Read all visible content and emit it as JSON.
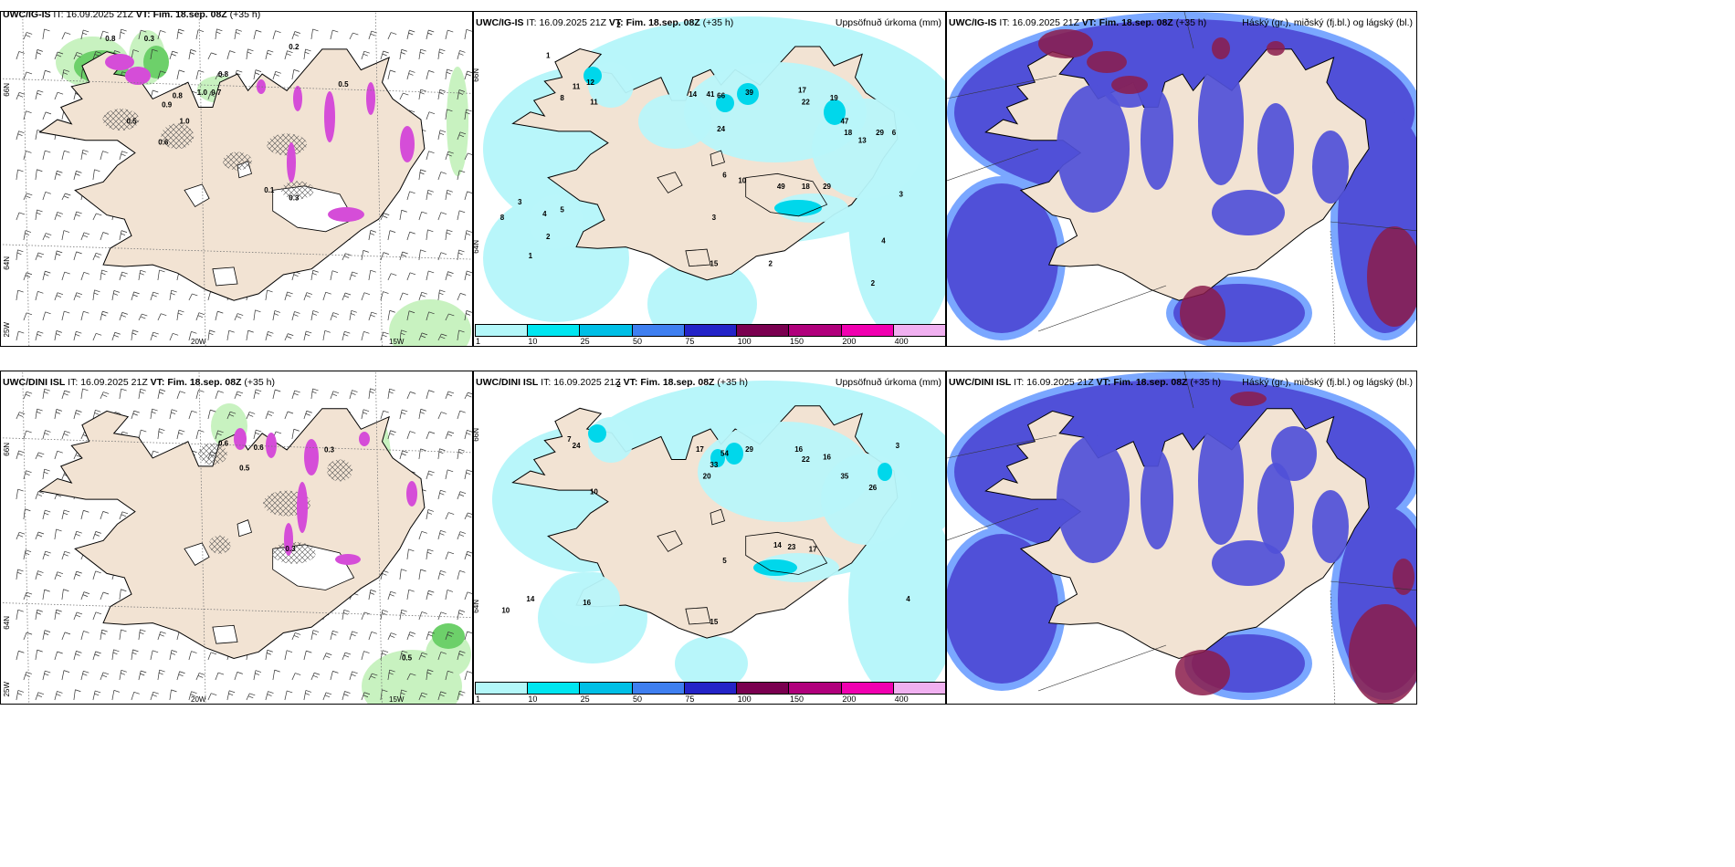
{
  "rows": [
    {
      "model": "UWC/IG-IS",
      "panels": [
        {
          "model": "UWC/IG-IS",
          "it_label": "IT:",
          "it": "16.09.2025 21Z",
          "vt_label": "VT:",
          "vt": "Fim. 18.sep. 08Z",
          "lead": "(+35 h)",
          "right_title": "",
          "header_cropped": true
        },
        {
          "model": "UWC/IG-IS",
          "it_label": "IT:",
          "it": "16.09.2025 21Z",
          "vt_label": "VT:",
          "vt": "Fim. 18.sep. 08Z",
          "lead": "(+35 h)",
          "right_title": "Uppsöfnuð úrkoma (mm)"
        },
        {
          "model": "UWC/IG-IS",
          "it_label": "IT:",
          "it": "16.09.2025 21Z",
          "vt_label": "VT:",
          "vt": "Fim. 18.sep. 08Z",
          "lead": "(+35 h)",
          "right_title": "Háský (gr.), miðský (fj.bl.) og lágský (bl.)"
        }
      ]
    },
    {
      "model": "UWC/DINI ISL",
      "panels": [
        {
          "model": "UWC/DINI ISL",
          "it_label": "IT:",
          "it": "16.09.2025 21Z",
          "vt_label": "VT:",
          "vt": "Fim. 18.sep. 08Z",
          "lead": "(+35 h)",
          "right_title": ""
        },
        {
          "model": "UWC/DINI ISL",
          "it_label": "IT:",
          "it": "16.09.2025 21Z",
          "vt_label": "VT:",
          "vt": "Fim. 18.sep. 08Z",
          "lead": "(+35 h)",
          "right_title": "Uppsöfnuð úrkoma (mm)"
        },
        {
          "model": "UWC/DINI ISL",
          "it_label": "IT:",
          "it": "16.09.2025 21Z",
          "vt_label": "VT:",
          "vt": "Fim. 18.sep. 08Z",
          "lead": "(+35 h)",
          "right_title": "Háský (gr.), miðský (fj.bl.) og lágský (bl.)"
        }
      ]
    }
  ],
  "axis_labels": {
    "lat66": "66N",
    "lat64": "64N",
    "lon25": "25W",
    "lon20": "20W",
    "lon15": "15W"
  },
  "colorbar": {
    "ticks": [
      "1",
      "10",
      "25",
      "50",
      "75",
      "100",
      "150",
      "200",
      "400"
    ],
    "colors": [
      "#b3f7f9",
      "#00e6f0",
      "#00bfe6",
      "#3f7ff0",
      "#2424c8",
      "#7a0050",
      "#b0007c",
      "#f000b0",
      "#f0b0f0"
    ]
  },
  "colors": {
    "land": "#f2e3d3",
    "sea_precip": "#b8f6fa",
    "precip_mid": "#00d7eb",
    "cloud_mid": "#5050d8",
    "cloud_low": "#7aa7ff",
    "cloud_high": "#8b1c4b",
    "green_light": "#c8f2c0",
    "green_mid": "#6dd06a",
    "magenta": "#d54dd8"
  },
  "precip_labels_top": [
    {
      "v": "2",
      "lon": -21.5,
      "lat": 66.7
    },
    {
      "v": "1",
      "lon": -23.5,
      "lat": 66.3
    },
    {
      "v": "11",
      "lon": -22.7,
      "lat": 65.9
    },
    {
      "v": "12",
      "lon": -22.3,
      "lat": 65.95
    },
    {
      "v": "8",
      "lon": -23.1,
      "lat": 65.75
    },
    {
      "v": "11",
      "lon": -22.2,
      "lat": 65.7
    },
    {
      "v": "14",
      "lon": -19.4,
      "lat": 65.8
    },
    {
      "v": "41",
      "lon": -18.9,
      "lat": 65.8
    },
    {
      "v": "66",
      "lon": -18.6,
      "lat": 65.78
    },
    {
      "v": "39",
      "lon": -17.8,
      "lat": 65.82
    },
    {
      "v": "17",
      "lon": -16.3,
      "lat": 65.85
    },
    {
      "v": "22",
      "lon": -16.2,
      "lat": 65.7
    },
    {
      "v": "19",
      "lon": -15.4,
      "lat": 65.75
    },
    {
      "v": "47",
      "lon": -15.1,
      "lat": 65.45
    },
    {
      "v": "29",
      "lon": -14.1,
      "lat": 65.3
    },
    {
      "v": "18",
      "lon": -15.0,
      "lat": 65.3
    },
    {
      "v": "13",
      "lon": -14.6,
      "lat": 65.2
    },
    {
      "v": "24",
      "lon": -18.6,
      "lat": 65.35
    },
    {
      "v": "6",
      "lon": -18.5,
      "lat": 64.75
    },
    {
      "v": "10",
      "lon": -18.0,
      "lat": 64.68
    },
    {
      "v": "49",
      "lon": -16.9,
      "lat": 64.6
    },
    {
      "v": "18",
      "lon": -16.2,
      "lat": 64.6
    },
    {
      "v": "29",
      "lon": -15.6,
      "lat": 64.6
    },
    {
      "v": "3",
      "lon": -18.8,
      "lat": 64.2
    },
    {
      "v": "3",
      "lon": -24.3,
      "lat": 64.4
    },
    {
      "v": "8",
      "lon": -24.8,
      "lat": 64.2
    },
    {
      "v": "4",
      "lon": -23.6,
      "lat": 64.25
    },
    {
      "v": "5",
      "lon": -23.1,
      "lat": 64.3
    },
    {
      "v": "2",
      "lon": -23.5,
      "lat": 63.95
    },
    {
      "v": "1",
      "lon": -24.0,
      "lat": 63.7
    },
    {
      "v": "15",
      "lon": -18.8,
      "lat": 63.6
    },
    {
      "v": "2",
      "lon": -17.2,
      "lat": 63.6
    },
    {
      "v": "4",
      "lon": -14.0,
      "lat": 63.9
    },
    {
      "v": "3",
      "lon": -13.5,
      "lat": 64.5
    },
    {
      "v": "2",
      "lon": -14.3,
      "lat": 63.35
    },
    {
      "v": "6",
      "lon": -13.7,
      "lat": 65.3
    }
  ],
  "precip_labels_bottom": [
    {
      "v": "2",
      "lon": -21.5,
      "lat": 66.7
    },
    {
      "v": "24",
      "lon": -22.7,
      "lat": 65.9
    },
    {
      "v": "7",
      "lon": -22.9,
      "lat": 65.98
    },
    {
      "v": "17",
      "lon": -19.2,
      "lat": 65.85
    },
    {
      "v": "33",
      "lon": -18.8,
      "lat": 65.65
    },
    {
      "v": "54",
      "lon": -18.5,
      "lat": 65.8
    },
    {
      "v": "29",
      "lon": -17.8,
      "lat": 65.85
    },
    {
      "v": "16",
      "lon": -16.4,
      "lat": 65.85
    },
    {
      "v": "22",
      "lon": -16.2,
      "lat": 65.72
    },
    {
      "v": "16",
      "lon": -15.6,
      "lat": 65.75
    },
    {
      "v": "35",
      "lon": -15.1,
      "lat": 65.5
    },
    {
      "v": "26",
      "lon": -14.3,
      "lat": 65.35
    },
    {
      "v": "20",
      "lon": -19.0,
      "lat": 65.5
    },
    {
      "v": "10",
      "lon": -22.2,
      "lat": 65.3
    },
    {
      "v": "14",
      "lon": -17.0,
      "lat": 64.6
    },
    {
      "v": "23",
      "lon": -16.6,
      "lat": 64.58
    },
    {
      "v": "17",
      "lon": -16.0,
      "lat": 64.55
    },
    {
      "v": "14",
      "lon": -24.0,
      "lat": 63.9
    },
    {
      "v": "10",
      "lon": -24.7,
      "lat": 63.75
    },
    {
      "v": "16",
      "lon": -22.4,
      "lat": 63.85
    },
    {
      "v": "15",
      "lon": -18.8,
      "lat": 63.6
    },
    {
      "v": "5",
      "lon": -18.5,
      "lat": 64.4
    },
    {
      "v": "3",
      "lon": -13.6,
      "lat": 65.9
    },
    {
      "v": "4",
      "lon": -13.3,
      "lat": 63.9
    }
  ],
  "wind_labels_top": [
    {
      "v": "0.8",
      "lon": -22.5,
      "lat": 66.55
    },
    {
      "v": "0.3",
      "lon": -21.4,
      "lat": 66.55
    },
    {
      "v": "0.2",
      "lon": -17.3,
      "lat": 66.45
    },
    {
      "v": "0.8",
      "lon": -19.3,
      "lat": 66.12
    },
    {
      "v": "0.5",
      "lon": -15.9,
      "lat": 66.0
    },
    {
      "v": "0.8",
      "lon": -20.6,
      "lat": 65.86
    },
    {
      "v": "1.0",
      "lon": -19.9,
      "lat": 65.9
    },
    {
      "v": "0.7",
      "lon": -19.5,
      "lat": 65.9
    },
    {
      "v": "1.0",
      "lon": -20.4,
      "lat": 65.55
    },
    {
      "v": "0.6",
      "lon": -21.0,
      "lat": 65.3
    },
    {
      "v": "0.5",
      "lon": -21.9,
      "lat": 65.55
    },
    {
      "v": "0.9",
      "lon": -20.9,
      "lat": 65.75
    },
    {
      "v": "0.3",
      "lon": -17.3,
      "lat": 64.63
    },
    {
      "v": "0.1",
      "lon": -18.0,
      "lat": 64.72
    }
  ],
  "wind_labels_bottom": [
    {
      "v": "0.6",
      "lon": -19.3,
      "lat": 66.0
    },
    {
      "v": "0.6",
      "lon": -18.3,
      "lat": 65.95
    },
    {
      "v": "0.5",
      "lon": -18.7,
      "lat": 65.7
    },
    {
      "v": "0.3",
      "lon": -16.3,
      "lat": 65.92
    },
    {
      "v": "0.3",
      "lon": -17.4,
      "lat": 64.72
    },
    {
      "v": "0.5",
      "lon": -14.1,
      "lat": 63.4
    }
  ]
}
